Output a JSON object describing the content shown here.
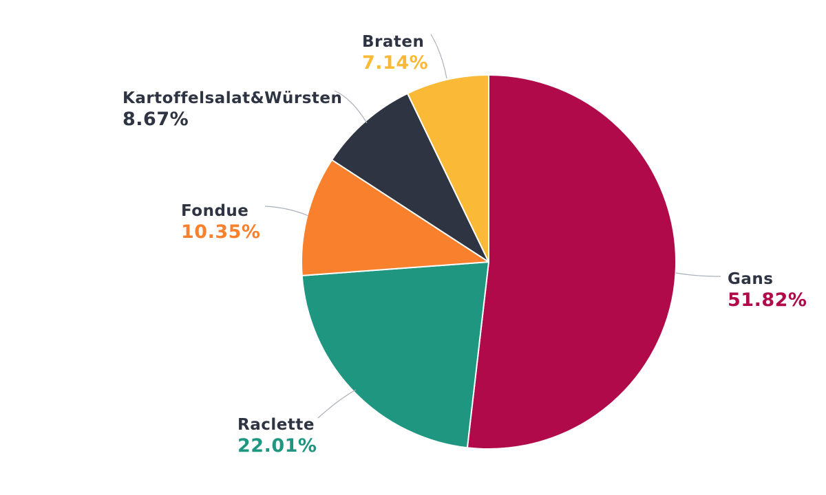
{
  "chart_data": {
    "type": "pie",
    "title": "",
    "unit": "%",
    "direction": "clockwise",
    "start_angle_deg": 0,
    "legend_position": "none",
    "labels_outside": true,
    "slices": [
      {
        "label": "Gans",
        "value": 51.82,
        "display": "51.82%",
        "color": "#B00A4A"
      },
      {
        "label": "Raclette",
        "value": 22.01,
        "display": "22.01%",
        "color": "#1E9680"
      },
      {
        "label": "Fondue",
        "value": 10.35,
        "display": "10.35%",
        "color": "#F9802C"
      },
      {
        "label": "Kartoffelsalat&Würsten",
        "value": 8.67,
        "display": "8.67%",
        "color": "#2F3442"
      },
      {
        "label": "Braten",
        "value": 7.14,
        "display": "7.14%",
        "color": "#FAB937"
      }
    ],
    "label_name_color": "#2F3442",
    "leader_line_color": "#A9AFBA",
    "background": "#FFFFFF"
  }
}
